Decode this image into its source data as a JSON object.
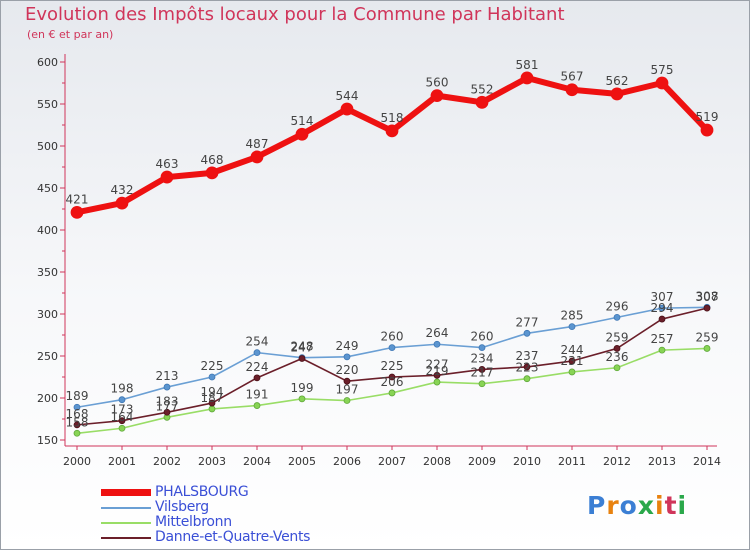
{
  "title": "Evolution des Impôts locaux pour la Commune par Habitant",
  "subtitle": "(en € et par an)",
  "brand": "Proxiti",
  "colors": {
    "title": "#d0355a",
    "legend_text": "#3a4fd6",
    "axis": "#d0355a"
  },
  "chart_data": {
    "type": "line",
    "x": [
      2000,
      2001,
      2002,
      2003,
      2004,
      2005,
      2006,
      2007,
      2008,
      2009,
      2010,
      2011,
      2012,
      2013,
      2014
    ],
    "x_tick_labels": [
      "2000",
      "2001",
      "2002",
      "2003",
      "2004",
      "2005",
      "2006",
      "2007",
      "2008",
      "2009",
      "2010",
      "2011",
      "2012",
      "2013",
      "2014"
    ],
    "ylim": [
      150,
      600
    ],
    "y_ticks": [
      150,
      200,
      250,
      300,
      350,
      400,
      450,
      500,
      550,
      600
    ],
    "y_tick_labels": [
      "150",
      "200",
      "250",
      "300",
      "350",
      "400",
      "450",
      "500",
      "550",
      "600"
    ],
    "grid": false,
    "legend_position": "bottom-left",
    "series": [
      {
        "name": "PHALSBOURG",
        "color": "#ee1111",
        "values": [
          421,
          432,
          463,
          468,
          487,
          514,
          544,
          518,
          560,
          552,
          581,
          567,
          562,
          575,
          519
        ],
        "labels": [
          "421",
          "432",
          "463",
          "468",
          "487",
          "514",
          "544",
          "518",
          "560",
          "552",
          "581",
          "567",
          "562",
          "575",
          "519"
        ]
      },
      {
        "name": "Vilsberg",
        "color": "#6a9fd4",
        "values": [
          189,
          198,
          213,
          225,
          254,
          248,
          249,
          260,
          264,
          260,
          277,
          285,
          296,
          307,
          308
        ],
        "labels": [
          "189",
          "198",
          "213",
          "225",
          "254",
          "248",
          "249",
          "260",
          "264",
          "260",
          "277",
          "285",
          "296",
          "307",
          "308"
        ]
      },
      {
        "name": "Mittelbronn",
        "color": "#99dd66",
        "values": [
          158,
          164,
          177,
          187,
          191,
          199,
          197,
          206,
          219,
          217,
          223,
          231,
          236,
          257,
          259
        ],
        "labels": [
          "158",
          "164",
          "177",
          "187",
          "191",
          "199",
          "197",
          "206",
          "219",
          "217",
          "223",
          "231",
          "236",
          "257",
          "259"
        ]
      },
      {
        "name": "Danne-et-Quatre-Vents",
        "color": "#6b1f2a",
        "values": [
          168,
          173,
          183,
          194,
          224,
          247,
          220,
          225,
          227,
          234,
          237,
          244,
          259,
          294,
          307
        ],
        "labels": [
          "168",
          "173",
          "183",
          "194",
          "224",
          "247",
          "220",
          "225",
          "227",
          "234",
          "237",
          "244",
          "259",
          "294",
          "307"
        ]
      }
    ]
  }
}
